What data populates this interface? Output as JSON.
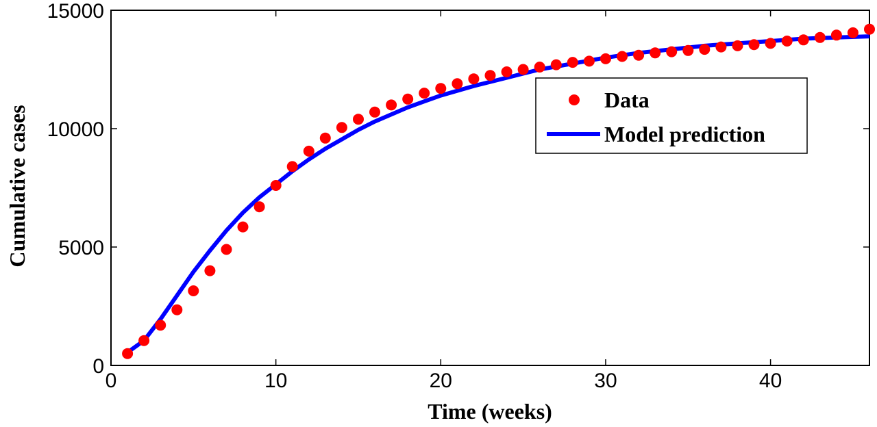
{
  "chart_data": {
    "type": "scatter",
    "title": "",
    "xlabel": "Time (weeks)",
    "ylabel": "Cumulative cases",
    "xlim": [
      0,
      46
    ],
    "ylim": [
      0,
      15000
    ],
    "xticks": [
      0,
      10,
      20,
      30,
      40
    ],
    "yticks": [
      0,
      5000,
      10000,
      15000
    ],
    "grid": false,
    "legend_position": "upper-right",
    "series": [
      {
        "name": "Data",
        "kind": "scatter",
        "color": "#ff0000",
        "x": [
          1,
          2,
          3,
          4,
          5,
          6,
          7,
          8,
          9,
          10,
          11,
          12,
          13,
          14,
          15,
          16,
          17,
          18,
          19,
          20,
          21,
          22,
          23,
          24,
          25,
          26,
          27,
          28,
          29,
          30,
          31,
          32,
          33,
          34,
          35,
          36,
          37,
          38,
          39,
          40,
          41,
          42,
          43,
          44,
          45,
          46
        ],
        "y": [
          500,
          1050,
          1700,
          2350,
          3150,
          4000,
          4900,
          5850,
          6700,
          7600,
          8400,
          9050,
          9600,
          10050,
          10400,
          10700,
          11000,
          11250,
          11500,
          11700,
          11900,
          12100,
          12250,
          12400,
          12500,
          12600,
          12700,
          12800,
          12850,
          12950,
          13050,
          13100,
          13200,
          13250,
          13300,
          13350,
          13450,
          13500,
          13550,
          13600,
          13700,
          13750,
          13850,
          13950,
          14050,
          14200
        ]
      },
      {
        "name": "Model prediction",
        "kind": "line",
        "color": "#0000ff",
        "x": [
          1,
          2,
          3,
          4,
          5,
          6,
          7,
          8,
          9,
          10,
          11,
          12,
          13,
          14,
          15,
          16,
          17,
          18,
          19,
          20,
          22,
          24,
          26,
          28,
          30,
          32,
          34,
          36,
          38,
          40,
          42,
          44,
          46
        ],
        "y": [
          550,
          1050,
          1950,
          2950,
          3950,
          4850,
          5700,
          6450,
          7100,
          7650,
          8200,
          8700,
          9150,
          9550,
          9950,
          10300,
          10600,
          10900,
          11150,
          11400,
          11800,
          12150,
          12500,
          12750,
          13000,
          13200,
          13350,
          13500,
          13600,
          13700,
          13800,
          13850,
          13900
        ]
      }
    ]
  }
}
